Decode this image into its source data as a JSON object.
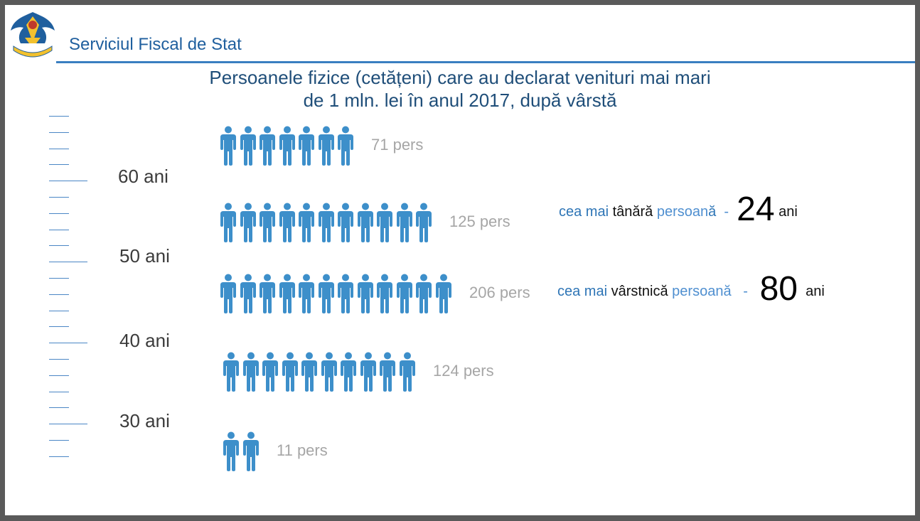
{
  "header": {
    "org_name": "Serviciul Fiscal de Stat",
    "accent_color": "#3a7fc1",
    "logo": "state-fiscal-service-emblem"
  },
  "title": {
    "line1": "Persoanele fizice (cetățeni) care au declarat venituri mai mari",
    "line2": "de 1 mln. lei în anul 2017, după vârstă"
  },
  "chart_data": {
    "type": "pictogram",
    "icon": "person-icon",
    "icon_color": "#3d8fca",
    "axis_labels": [
      "60 ani",
      "50 ani",
      "40 ani",
      "30 ani"
    ],
    "rows": [
      {
        "count": 71,
        "label": "71 pers",
        "icons": 7
      },
      {
        "count": 125,
        "label": "125 pers",
        "icons": 11
      },
      {
        "count": 206,
        "label": "206 pers",
        "icons": 12
      },
      {
        "count": 124,
        "label": "124 pers",
        "icons": 10
      },
      {
        "count": 11,
        "label": "11 pers",
        "icons": 2
      }
    ]
  },
  "facts": {
    "youngest": {
      "pre": "cea mai ",
      "emph": "tânără",
      "post": " persoan",
      "post2": "ă",
      "dash": "  -  ",
      "value": "24",
      "unit": " ani"
    },
    "oldest": {
      "pre": "cea mai ",
      "emph": "vârstnică",
      "post": " persoană",
      "dash": "   -   ",
      "value": "80",
      "unit": "  ani"
    }
  }
}
